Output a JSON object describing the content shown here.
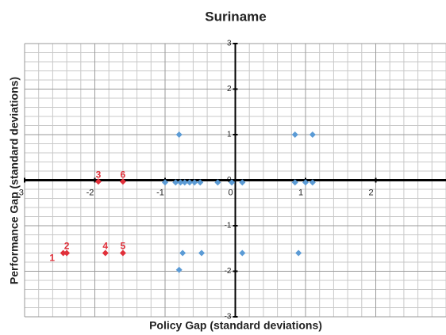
{
  "chart_data": {
    "type": "scatter",
    "title": "Suriname",
    "x_label": "Policy Gap (standard deviations)",
    "y_label": "Performance Gap (standard deviations)",
    "xlim": [
      -3,
      3
    ],
    "ylim": [
      -3,
      3
    ],
    "xticks": [
      -3,
      -2,
      -1,
      0,
      1,
      2
    ],
    "yticks": [
      -3,
      -2,
      -1,
      0,
      1,
      2,
      3
    ],
    "grid": true,
    "minor_grid_step": 0.2,
    "series": [
      {
        "color": "#5b9bd5",
        "x": [
          -0.8,
          0.85,
          1.1,
          -1.0,
          -0.85,
          -0.78,
          -0.72,
          -0.65,
          -0.58,
          -0.5,
          -0.25,
          -0.05,
          0.1,
          0.85,
          1.0,
          1.1,
          -0.75,
          -0.48,
          0.1,
          0.9,
          -0.8
        ],
        "values": [
          1,
          1,
          1,
          -0.05,
          -0.05,
          -0.05,
          -0.05,
          -0.05,
          -0.05,
          -0.05,
          -0.05,
          -0.05,
          -0.05,
          -0.05,
          -0.05,
          -0.05,
          -1.6,
          -1.6,
          -1.6,
          -1.6,
          -1.97
        ]
      },
      {
        "color": "#e0303a",
        "x": [
          -2.45,
          -2.4,
          -1.95,
          -1.85,
          -1.6,
          -1.6
        ],
        "values": [
          -1.6,
          -1.6,
          -0.03,
          -1.6,
          -1.6,
          -0.03
        ],
        "labels": [
          "1",
          "2",
          "3",
          "4",
          "5",
          "6"
        ]
      }
    ]
  }
}
